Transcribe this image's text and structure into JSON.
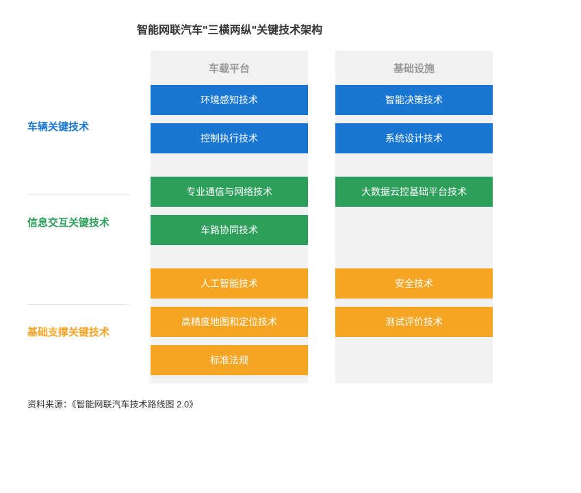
{
  "title": "智能网联汽车\"三横两纵\"关键技术架构",
  "columns": {
    "col1": "车载平台",
    "col2": "基础设施"
  },
  "sections": [
    {
      "label": "车辆关键技术",
      "color": "#1976d2",
      "labelTop": 100,
      "rows": [
        {
          "left": "环境感知技术",
          "right": "智能决策技术"
        },
        {
          "left": "控制执行技术",
          "right": "系统设计技术"
        }
      ]
    },
    {
      "label": "信息交互关键技术",
      "color": "#2e9e5b",
      "labelTop": 240,
      "rows": [
        {
          "left": "专业通信与网络技术",
          "right": "大数据云控基础平台技术"
        },
        {
          "left": "车路协同技术",
          "right": null
        }
      ]
    },
    {
      "label": "基础支撑关键技术",
      "color": "#f5a524",
      "labelTop": 400,
      "rows": [
        {
          "left": "人工智能技术",
          "right": "安全技术"
        },
        {
          "left": "高精度地图和定位技术",
          "right": "测试评价技术"
        },
        {
          "left": "标准法规",
          "right": null
        }
      ]
    }
  ],
  "source": "资料来源：《智能网联汽车技术路线图 2.0》",
  "styling": {
    "background": "#ffffff",
    "columnBg": "#f1f1f1",
    "titleColor": "#333333",
    "headerColor": "#999999",
    "boxTextColor": "#ffffff",
    "boxWidth": 230,
    "boxHeight": 44,
    "boxGap": 40,
    "titleFontSize": 16,
    "labelFontSize": 15,
    "boxFontSize": 14,
    "sourceFontSize": 13
  }
}
